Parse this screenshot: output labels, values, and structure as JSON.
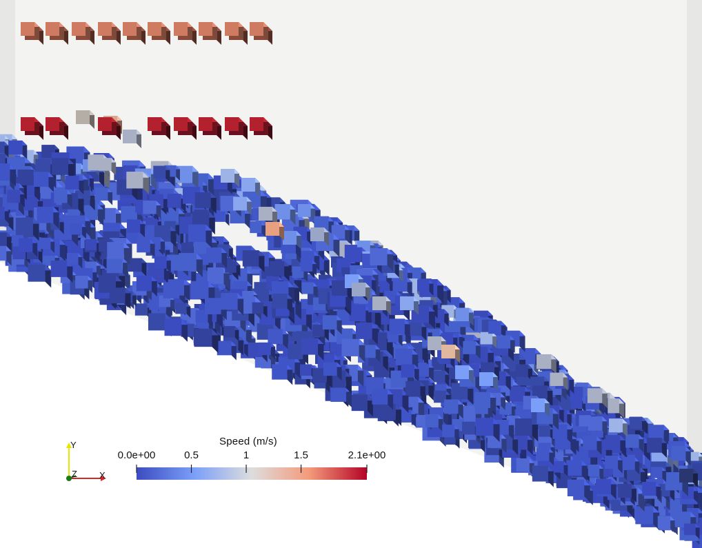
{
  "scene": {
    "background_color": "#f2f2f1",
    "ramp_color": "#ffffff",
    "description_colors": {
      "low": "#3b4cc0",
      "mid": "#dddddd",
      "high": "#b40426"
    }
  },
  "colorbar": {
    "title": "Speed (m/s)",
    "min_label": "0.0e+00",
    "max_label": "2.1e+00",
    "ticks": [
      {
        "label": "0.0e+00",
        "value": 0.0
      },
      {
        "label": "0.5",
        "value": 0.5
      },
      {
        "label": "1",
        "value": 1.0
      },
      {
        "label": "1.5",
        "value": 1.5
      },
      {
        "label": "2.1e+00",
        "value": 2.1
      }
    ],
    "range": [
      0.0,
      2.1
    ]
  },
  "axes": {
    "x_label": "X",
    "y_label": "Y",
    "z_label": "Z",
    "x_color": "#d62728",
    "y_color": "#e6e600",
    "z_color": "#1a7a1a"
  }
}
